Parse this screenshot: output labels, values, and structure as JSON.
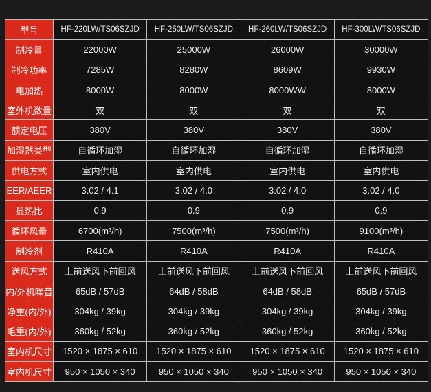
{
  "colors": {
    "label_bg": "#d92a1c",
    "cell_bg": "#121212",
    "border": "#bdbdbd"
  },
  "rows": [
    {
      "label": "型号",
      "values": [
        "HF-220LW/TS06SZJD",
        "HF-250LW/TS06SZJD",
        "HF-260LW/TS06SZJD",
        "HF-300LW/TS06SZJD"
      ]
    },
    {
      "label": "制冷量",
      "values": [
        "22000W",
        "25000W",
        "26000W",
        "30000W"
      ]
    },
    {
      "label": "制冷功率",
      "values": [
        "7285W",
        "8280W",
        "8609W",
        "9930W"
      ]
    },
    {
      "label": "电加热",
      "values": [
        "8000W",
        "8000W",
        "8000WW",
        "8000W"
      ]
    },
    {
      "label": "室外机数量",
      "values": [
        "双",
        "双",
        "双",
        "双"
      ]
    },
    {
      "label": "额定电压",
      "values": [
        "380V",
        "380V",
        "380V",
        "380V"
      ]
    },
    {
      "label": "加湿器类型",
      "values": [
        "自循环加湿",
        "自循环加湿",
        "自循环加湿",
        "自循环加湿"
      ]
    },
    {
      "label": "供电方式",
      "values": [
        "室内供电",
        "室内供电",
        "室内供电",
        "室内供电"
      ]
    },
    {
      "label": "EER/AEER",
      "values": [
        "3.02 / 4.1",
        "3.02 / 4.0",
        "3.02 / 4.0",
        "3.02 / 4.0"
      ]
    },
    {
      "label": "显热比",
      "values": [
        "0.9",
        "0.9",
        "0.9",
        "0.9"
      ]
    },
    {
      "label": "循环风量",
      "values": [
        "6700(m³/h)",
        "7500(m³/h)",
        "7500(m³/h)",
        "9100(m³/h)"
      ]
    },
    {
      "label": "制冷剂",
      "values": [
        "R410A",
        "R410A",
        "R410A",
        "R410A"
      ]
    },
    {
      "label": "送风方式",
      "values": [
        "上前送风下前回风",
        "上前送风下前回风",
        "上前送风下前回风",
        "上前送风下前回风"
      ]
    },
    {
      "label": "内/外机噪音",
      "values": [
        "65dB / 57dB",
        "64dB / 58dB",
        "64dB / 58dB",
        "65dB / 57dB"
      ]
    },
    {
      "label": "净重(内/外)",
      "values": [
        "304kg / 39kg",
        "304kg / 39kg",
        "304kg / 39kg",
        "304kg / 39kg"
      ]
    },
    {
      "label": "毛重(内/外)",
      "values": [
        "360kg / 52kg",
        "360kg / 52kg",
        "360kg / 52kg",
        "360kg / 52kg"
      ]
    },
    {
      "label": "室内机尺寸",
      "values": [
        "1520 × 1875 × 610",
        "1520 × 1875 × 610",
        "1520 × 1875 × 610",
        "1520 × 1875 × 610"
      ]
    },
    {
      "label": "室内机尺寸",
      "values": [
        "950 × 1050 × 340",
        "950 × 1050 × 340",
        "950 × 1050 × 340",
        "950 × 1050 × 340"
      ]
    }
  ]
}
